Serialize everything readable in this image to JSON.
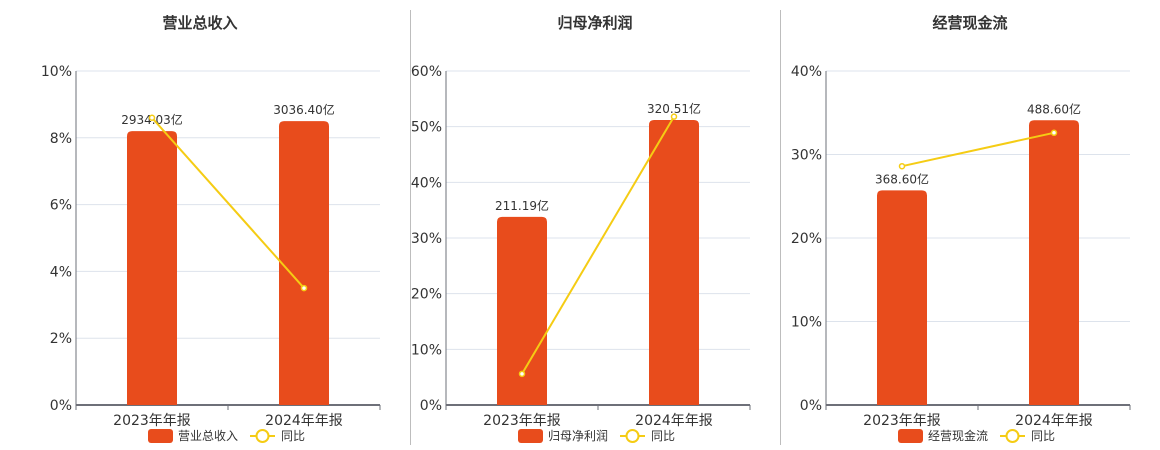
{
  "colors": {
    "bar": "#e84c1c",
    "line": "#f5cc14",
    "grid": "#dde3ec",
    "axis": "#6e7079",
    "text": "#333333",
    "divider": "#bdbdbd"
  },
  "legend": {
    "line_label": "同比"
  },
  "chart_data": [
    {
      "type": "bar+line",
      "title": "营业总收入",
      "categories": [
        "2023年年报",
        "2024年年报"
      ],
      "series": [
        {
          "name": "营业总收入",
          "type": "bar",
          "values": [
            2934.03,
            3036.4
          ],
          "unit": "亿",
          "labels": [
            "2934.03亿",
            "3036.40亿"
          ],
          "bar_height_pct": [
            8.2,
            8.5
          ]
        },
        {
          "name": "同比",
          "type": "line",
          "values": [
            8.6,
            3.5
          ],
          "unit": "%"
        }
      ],
      "ylim": [
        0,
        10
      ],
      "yticks": [
        "0%",
        "2%",
        "4%",
        "6%",
        "8%",
        "10%"
      ],
      "grid": true,
      "legend_position": "bottom"
    },
    {
      "type": "bar+line",
      "title": "归母净利润",
      "categories": [
        "2023年年报",
        "2024年年报"
      ],
      "series": [
        {
          "name": "归母净利润",
          "type": "bar",
          "values": [
            211.19,
            320.51
          ],
          "unit": "亿",
          "labels": [
            "211.19亿",
            "320.51亿"
          ],
          "bar_height_pct": [
            33.8,
            51.2
          ]
        },
        {
          "name": "同比",
          "type": "line",
          "values": [
            5.6,
            51.8
          ],
          "unit": "%"
        }
      ],
      "ylim": [
        0,
        60
      ],
      "yticks": [
        "0%",
        "10%",
        "20%",
        "30%",
        "40%",
        "50%",
        "60%"
      ],
      "grid": true,
      "legend_position": "bottom"
    },
    {
      "type": "bar+line",
      "title": "经营现金流",
      "categories": [
        "2023年年报",
        "2024年年报"
      ],
      "series": [
        {
          "name": "经营现金流",
          "type": "bar",
          "values": [
            368.6,
            488.6
          ],
          "unit": "亿",
          "labels": [
            "368.60亿",
            "488.60亿"
          ],
          "bar_height_pct": [
            25.7,
            34.1
          ]
        },
        {
          "name": "同比",
          "type": "line",
          "values": [
            28.6,
            32.6
          ],
          "unit": "%"
        }
      ],
      "ylim": [
        0,
        40
      ],
      "yticks": [
        "0%",
        "10%",
        "20%",
        "30%",
        "40%"
      ],
      "grid": true,
      "legend_position": "bottom"
    }
  ]
}
